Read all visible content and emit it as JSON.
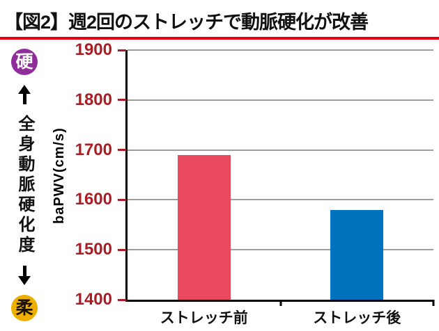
{
  "title": "【図2】週2回のストレッチで動脈硬化が改善",
  "accent_color": "#e60012",
  "indicator": {
    "top_label": "硬",
    "top_color": "#8f2d9a",
    "bottom_label": "柔",
    "bottom_color": "#efaf00",
    "axis_label": "全身動脈硬化度"
  },
  "chart_data": {
    "type": "bar",
    "title": "週2回のストレッチで動脈硬化が改善",
    "categories": [
      "ストレッチ前",
      "ストレッチ後"
    ],
    "values": [
      1690,
      1580
    ],
    "bar_colors": [
      "#e8495f",
      "#0071bc"
    ],
    "xlabel": "",
    "ylabel": "baPWV(cm/s)",
    "ylim": [
      1400,
      1900
    ],
    "yticks": [
      1400,
      1500,
      1600,
      1700,
      1800,
      1900
    ],
    "grid": true,
    "tick_color": "#a81e24",
    "legend": "none"
  }
}
